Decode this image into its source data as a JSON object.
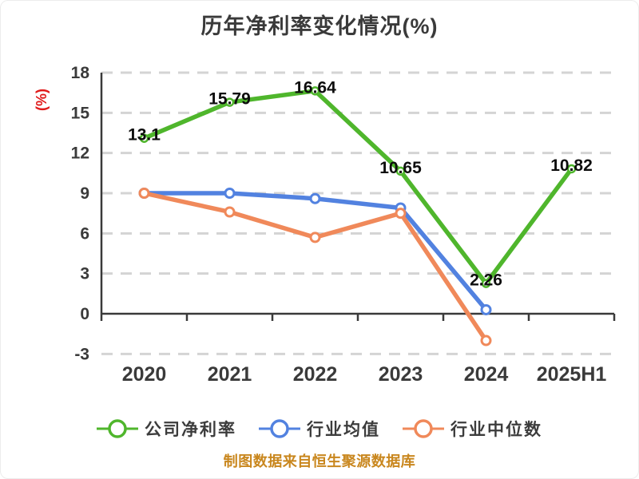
{
  "title": "历年净利率变化情况(%)",
  "footer": "制图数据来自恒生聚源数据库",
  "colors": {
    "title_text": "#3a3a3a",
    "footer_text": "#c9871e",
    "background": "#ffffff"
  },
  "chart_data": {
    "type": "line",
    "title": "历年净利率变化情况(%)",
    "categories": [
      "2020",
      "2021",
      "2022",
      "2023",
      "2024",
      "2025H1"
    ],
    "series": [
      {
        "name": "公司净利率",
        "color": "#4fb62c",
        "values": [
          13.1,
          15.79,
          16.64,
          10.65,
          2.26,
          10.82
        ],
        "data_labels": true
      },
      {
        "name": "行业均值",
        "color": "#5282e0",
        "values": [
          9.0,
          9.0,
          8.6,
          7.9,
          0.3,
          null
        ],
        "data_labels": false
      },
      {
        "name": "行业中位数",
        "color": "#f0895a",
        "values": [
          9.0,
          7.6,
          5.7,
          7.5,
          -2.0,
          null
        ],
        "data_labels": false
      }
    ],
    "xlabel": "",
    "ylabel": "(%)",
    "ylabel_color": "#e01a1a",
    "ylim": [
      -3,
      18
    ],
    "yticks": [
      18,
      15,
      12,
      9,
      6,
      3,
      0,
      -3
    ],
    "grid": "horizontal-dashed",
    "grid_color": "#d4d4d4",
    "axis_color": "#3a3a3a",
    "tick_label_color": "#3a3a3a",
    "data_label_color": "#0d0d0d",
    "legend_position": "bottom",
    "marker_style": "hollow-circle"
  }
}
